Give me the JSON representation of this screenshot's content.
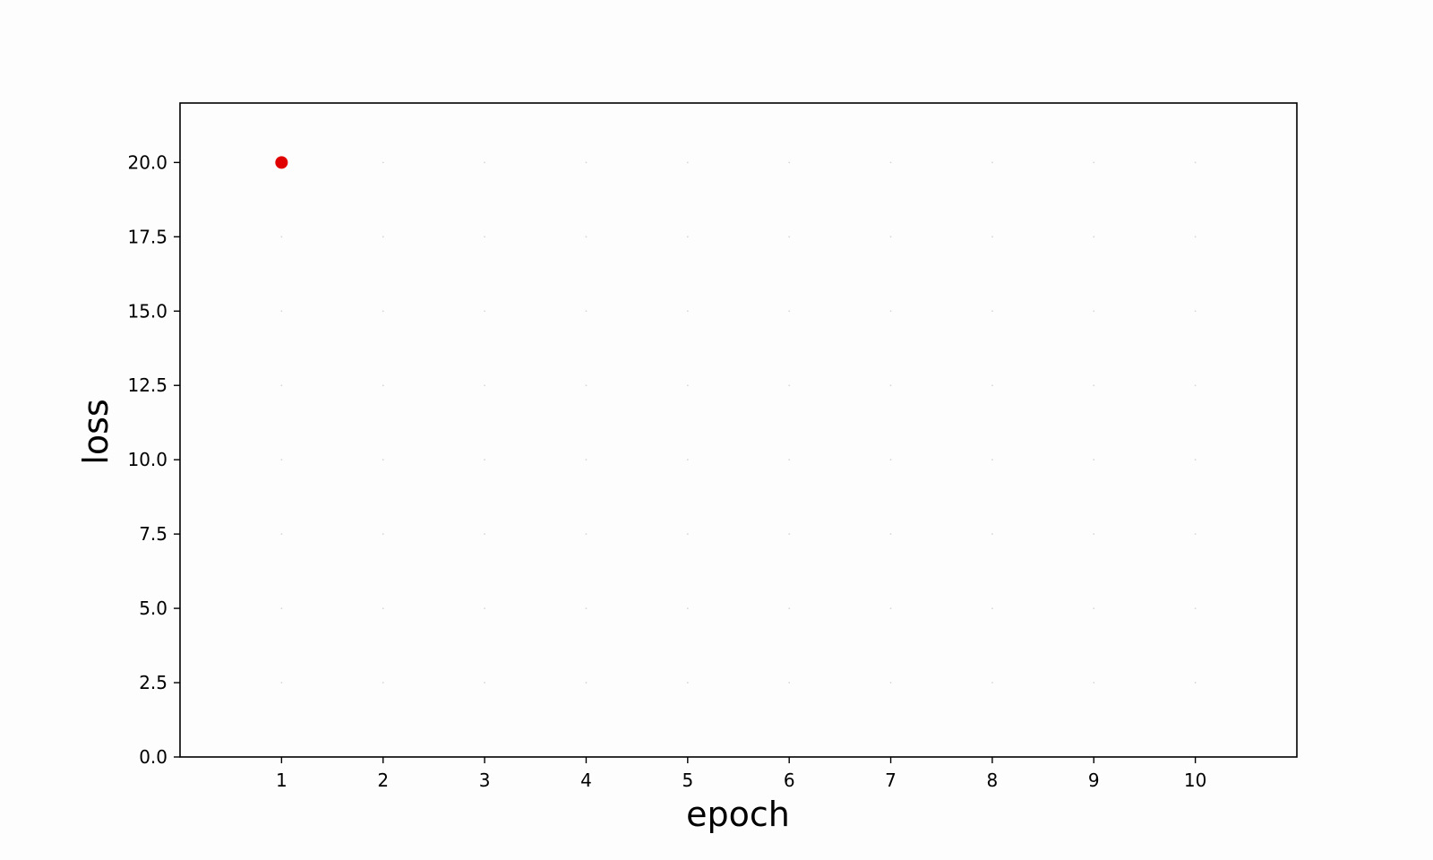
{
  "chart_data": {
    "type": "scatter",
    "title": "",
    "xlabel": "epoch",
    "ylabel": "loss",
    "xlim": [
      0,
      11
    ],
    "ylim": [
      0,
      22
    ],
    "x_ticks": [
      1,
      2,
      3,
      4,
      5,
      6,
      7,
      8,
      9,
      10
    ],
    "y_ticks": [
      0.0,
      2.5,
      5.0,
      7.5,
      10.0,
      12.5,
      15.0,
      17.5,
      20.0
    ],
    "grid": true,
    "legend": "none",
    "series": [
      {
        "x": [
          1
        ],
        "y": [
          20.0
        ],
        "color": "#e00000"
      }
    ]
  }
}
